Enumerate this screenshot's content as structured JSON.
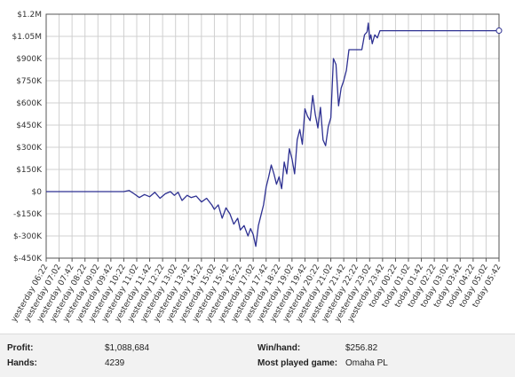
{
  "colors": {
    "line": "#2e3192",
    "grid": "#d0d0d0",
    "axis": "#555555",
    "footer_bg": "#f2f2f2"
  },
  "chart_data": {
    "type": "line",
    "title": "",
    "xlabel": "",
    "ylabel": "",
    "grid": true,
    "ylim": [
      -450000,
      1200000
    ],
    "y_ticks": [
      {
        "value": 1200000,
        "label": "$1.2M"
      },
      {
        "value": 1050000,
        "label": "$1.05M"
      },
      {
        "value": 900000,
        "label": "$900K"
      },
      {
        "value": 750000,
        "label": "$750K"
      },
      {
        "value": 600000,
        "label": "$600K"
      },
      {
        "value": 450000,
        "label": "$450K"
      },
      {
        "value": 300000,
        "label": "$300K"
      },
      {
        "value": 150000,
        "label": "$150K"
      },
      {
        "value": 0,
        "label": "$0"
      },
      {
        "value": -150000,
        "label": "-$150K"
      },
      {
        "value": -300000,
        "label": "$-300K"
      },
      {
        "value": -450000,
        "label": "$-450K"
      }
    ],
    "x_ticks": [
      "yesterday 06:22",
      "yesterday 07:02",
      "yesterday 07:42",
      "yesterday 08:22",
      "yesterday 09:02",
      "yesterday 09:42",
      "yesterday 10:22",
      "yesterday 11:02",
      "yesterday 11:42",
      "yesterday 12:22",
      "yesterday 13:02",
      "yesterday 13:42",
      "yesterday 14:22",
      "yesterday 15:02",
      "yesterday 15:42",
      "yesterday 16:22",
      "yesterday 17:02",
      "yesterday 17:42",
      "yesterday 18:22",
      "yesterday 19:02",
      "yesterday 19:42",
      "yesterday 20:22",
      "yesterday 21:02",
      "yesterday 21:42",
      "yesterday 22:22",
      "yesterday 23:02",
      "yesterday 23:42",
      "today 00:22",
      "today 01:02",
      "today 01:42",
      "today 02:22",
      "today 03:02",
      "today 03:42",
      "today 04:22",
      "today 05:02",
      "today 05:42"
    ],
    "series": [
      {
        "name": "",
        "points": [
          [
            0,
            0
          ],
          [
            6.0,
            0
          ],
          [
            6.4,
            8000
          ],
          [
            6.8,
            -15000
          ],
          [
            7.2,
            -40000
          ],
          [
            7.6,
            -20000
          ],
          [
            8.0,
            -35000
          ],
          [
            8.4,
            -5000
          ],
          [
            8.8,
            -45000
          ],
          [
            9.2,
            -15000
          ],
          [
            9.6,
            0
          ],
          [
            9.9,
            -25000
          ],
          [
            10.2,
            -5000
          ],
          [
            10.5,
            -60000
          ],
          [
            10.9,
            -25000
          ],
          [
            11.2,
            -40000
          ],
          [
            11.6,
            -30000
          ],
          [
            12.0,
            -70000
          ],
          [
            12.4,
            -45000
          ],
          [
            12.8,
            -90000
          ],
          [
            13.0,
            -120000
          ],
          [
            13.3,
            -90000
          ],
          [
            13.6,
            -180000
          ],
          [
            13.9,
            -110000
          ],
          [
            14.2,
            -150000
          ],
          [
            14.5,
            -220000
          ],
          [
            14.8,
            -180000
          ],
          [
            15.0,
            -260000
          ],
          [
            15.3,
            -230000
          ],
          [
            15.6,
            -300000
          ],
          [
            15.8,
            -250000
          ],
          [
            16.0,
            -290000
          ],
          [
            16.2,
            -370000
          ],
          [
            16.4,
            -230000
          ],
          [
            16.6,
            -160000
          ],
          [
            16.8,
            -90000
          ],
          [
            17.0,
            30000
          ],
          [
            17.2,
            100000
          ],
          [
            17.4,
            180000
          ],
          [
            17.6,
            120000
          ],
          [
            17.8,
            50000
          ],
          [
            18.0,
            100000
          ],
          [
            18.2,
            20000
          ],
          [
            18.4,
            200000
          ],
          [
            18.6,
            120000
          ],
          [
            18.8,
            290000
          ],
          [
            19.0,
            220000
          ],
          [
            19.2,
            120000
          ],
          [
            19.4,
            350000
          ],
          [
            19.6,
            420000
          ],
          [
            19.8,
            320000
          ],
          [
            20.0,
            560000
          ],
          [
            20.2,
            510000
          ],
          [
            20.4,
            480000
          ],
          [
            20.6,
            650000
          ],
          [
            20.8,
            520000
          ],
          [
            21.0,
            430000
          ],
          [
            21.2,
            570000
          ],
          [
            21.4,
            350000
          ],
          [
            21.6,
            310000
          ],
          [
            21.8,
            440000
          ],
          [
            22.0,
            500000
          ],
          [
            22.2,
            900000
          ],
          [
            22.4,
            860000
          ],
          [
            22.6,
            580000
          ],
          [
            22.8,
            700000
          ],
          [
            23.0,
            750000
          ],
          [
            23.2,
            820000
          ],
          [
            23.4,
            960000
          ],
          [
            24.0,
            960000
          ],
          [
            24.4,
            960000
          ],
          [
            24.6,
            1060000
          ],
          [
            24.8,
            1080000
          ],
          [
            24.9,
            1140000
          ],
          [
            25.0,
            1030000
          ],
          [
            25.1,
            1060000
          ],
          [
            25.2,
            1000000
          ],
          [
            25.4,
            1060000
          ],
          [
            25.6,
            1040000
          ],
          [
            25.8,
            1088684
          ],
          [
            35.0,
            1088684
          ]
        ]
      }
    ]
  },
  "footer": {
    "profit_label": "Profit:",
    "profit_value": "$1,088,684",
    "hands_label": "Hands:",
    "hands_value": "4239",
    "winhand_label": "Win/hand:",
    "winhand_value": "$256.82",
    "game_label": "Most played game:",
    "game_value": "Omaha PL"
  }
}
